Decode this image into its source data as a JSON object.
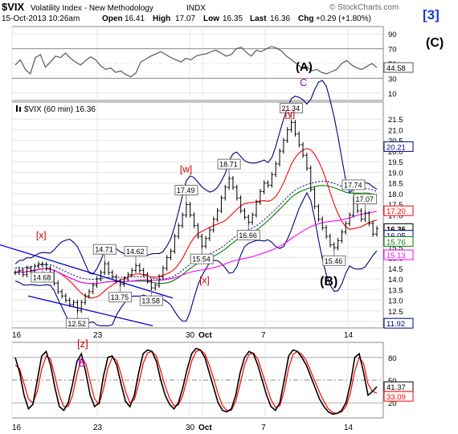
{
  "header": {
    "symbol": "$VIX",
    "name": "Volatility Index - New Methodology",
    "exchange": "INDX",
    "datetime": "15-Oct-2013 10:26am",
    "open_label": "Open",
    "open": "16.41",
    "high_label": "High",
    "high": "17.07",
    "low_label": "Low",
    "low": "16.35",
    "last_label": "Last",
    "last": "16.36",
    "chg_label": "Chg",
    "chg": "+0.29 (+1.80%)",
    "copyright": "© StockCharts.com",
    "wave_degree": "[3]",
    "wave_c": "(C)"
  },
  "colors": {
    "price_bar": "#000000",
    "sma_red": "#ff0000",
    "sma_green": "#008000",
    "sma_magenta": "#ff00ff",
    "bb_blue": "#000080",
    "trendline_blue": "#0000cc",
    "dotted": "#000066",
    "label_red": "#cc0000",
    "label_purple": "#9900cc",
    "panel_bg": "#ffffff",
    "grid": "#e6e6e6"
  },
  "chart_data": {
    "type": "line",
    "x_tick_labels": [
      "16",
      "23",
      "30",
      "Oct",
      "7",
      "14"
    ],
    "top_panel": {
      "name": "RSI",
      "ylim": [
        0,
        100
      ],
      "tick_labels": [
        "90",
        "70",
        "50",
        "30",
        "10"
      ],
      "last_value": "44.58",
      "values": [
        48,
        55,
        42,
        36,
        58,
        62,
        45,
        52,
        60,
        58,
        64,
        57,
        52,
        48,
        54,
        59,
        55,
        47,
        42,
        44,
        38,
        40,
        35,
        32,
        37,
        52,
        56,
        60,
        63,
        66,
        62,
        58,
        55,
        52,
        57,
        55,
        60,
        62,
        63,
        66,
        68,
        64,
        60,
        62,
        70,
        72,
        65,
        60,
        68,
        66,
        70,
        73,
        71,
        67,
        60,
        55,
        50,
        44,
        46,
        40,
        42,
        38,
        36,
        39,
        42,
        50,
        54,
        48,
        44,
        42,
        46,
        50,
        44.58
      ]
    },
    "main_panel": {
      "title": "$VIX (60 min) 16.36",
      "ylim": [
        11.7,
        22.3
      ],
      "tick_labels": [
        "21.5",
        "21.0",
        "20.5",
        "20.0",
        "19.5",
        "19.0",
        "18.5",
        "18.0",
        "17.5",
        "17.0",
        "16.5",
        "16.0",
        "15.5",
        "15.0",
        "14.5",
        "14.0",
        "13.5",
        "13.0",
        "12.5",
        "12.0"
      ],
      "last_values": [
        {
          "value": "20.21",
          "color": "#000080"
        },
        {
          "value": "17.20",
          "color": "#ff0000"
        },
        {
          "value": "16.36",
          "color": "#000000"
        },
        {
          "value": "16.05",
          "color": "#000080"
        },
        {
          "value": "15.76",
          "color": "#008000"
        },
        {
          "value": "15.13",
          "color": "#ff00ff"
        },
        {
          "value": "11.92",
          "color": "#000080"
        }
      ],
      "price": [
        14.3,
        14.4,
        14.2,
        14.5,
        14.4,
        14.6,
        14.7,
        14.68,
        14.5,
        14.3,
        13.8,
        13.4,
        13.2,
        13.0,
        12.8,
        12.9,
        12.52,
        12.9,
        13.2,
        13.4,
        13.7,
        14.0,
        14.3,
        14.71,
        14.3,
        14.1,
        13.9,
        13.75,
        14.0,
        14.2,
        14.4,
        14.62,
        14.4,
        14.2,
        13.9,
        13.58,
        13.7,
        14.1,
        14.5,
        15.0,
        15.3,
        16.0,
        16.5,
        17.0,
        17.49,
        17.0,
        16.5,
        16.0,
        15.54,
        15.9,
        16.3,
        16.8,
        17.2,
        17.8,
        18.3,
        18.71,
        18.3,
        17.8,
        17.2,
        16.9,
        16.66,
        17.0,
        17.6,
        18.1,
        18.5,
        18.4,
        18.9,
        19.4,
        20.0,
        20.5,
        21.0,
        21.34,
        20.8,
        20.3,
        19.8,
        19.2,
        18.2,
        17.4,
        16.8,
        16.4,
        16.0,
        15.6,
        15.46,
        15.8,
        16.2,
        16.6,
        17.0,
        17.74,
        17.2,
        16.8,
        17.07,
        16.6,
        16.1,
        16.36
      ],
      "price_labels": [
        {
          "text": "14.68",
          "i": 7
        },
        {
          "text": "12.52",
          "i": 16
        },
        {
          "text": "14.71",
          "i": 23
        },
        {
          "text": "13.75",
          "i": 27
        },
        {
          "text": "14.62",
          "i": 31
        },
        {
          "text": "13.58",
          "i": 35
        },
        {
          "text": "17.49",
          "i": 44
        },
        {
          "text": "15.54",
          "i": 48
        },
        {
          "text": "18.71",
          "i": 55
        },
        {
          "text": "16.66",
          "i": 60
        },
        {
          "text": "21.34",
          "i": 71
        },
        {
          "text": "15.46",
          "i": 82
        },
        {
          "text": "17.74",
          "i": 87
        },
        {
          "text": "17.07",
          "i": 90
        }
      ],
      "wave_labels": [
        {
          "text": "[x]",
          "color": "#cc0000",
          "i": 7,
          "y": 15.9
        },
        {
          "text": "[w]",
          "color": "#cc0000",
          "i": 44,
          "y": 19.0
        },
        {
          "text": "[x]",
          "color": "#cc0000",
          "i": 49,
          "y": 13.8
        },
        {
          "text": "[y]",
          "color": "#cc0000",
          "i": 71,
          "y": 21.6
        },
        {
          "text": "(A)",
          "color": "#000000",
          "i": 72,
          "y": 0
        },
        {
          "text": "C",
          "color": "#9900cc",
          "i": 72,
          "y": 0
        },
        {
          "text": "(B)",
          "color": "#000000",
          "i": 80,
          "y": 13.7
        }
      ]
    },
    "bottom_panel": {
      "name": "Stochastic",
      "ylim": [
        0,
        100
      ],
      "tick_labels": [
        "80",
        "50",
        "20"
      ],
      "last_value": "41.37",
      "last_value_2": "33.09",
      "wave_labels": [
        {
          "text": "[z]",
          "color": "#cc0000"
        },
        {
          "text": "B",
          "color": "#9900cc"
        }
      ],
      "fast": [
        80,
        60,
        30,
        12,
        18,
        50,
        82,
        88,
        70,
        40,
        15,
        10,
        20,
        45,
        75,
        85,
        60,
        30,
        15,
        20,
        55,
        80,
        82,
        70,
        45,
        22,
        15,
        30,
        60,
        85,
        90,
        88,
        75,
        50,
        30,
        18,
        12,
        20,
        40,
        65,
        85,
        92,
        90,
        80,
        60,
        40,
        20,
        10,
        8,
        12,
        30,
        60,
        80,
        88,
        85,
        70,
        50,
        30,
        15,
        10,
        20,
        50,
        82,
        90,
        88,
        80,
        70,
        55,
        40,
        25,
        15,
        8,
        5,
        6,
        10,
        20,
        45,
        80,
        85,
        60,
        30,
        35,
        41.37
      ],
      "slow": [
        70,
        65,
        45,
        25,
        20,
        35,
        65,
        82,
        78,
        55,
        30,
        15,
        15,
        30,
        58,
        78,
        72,
        48,
        25,
        18,
        38,
        66,
        80,
        76,
        58,
        35,
        20,
        24,
        45,
        72,
        86,
        88,
        82,
        62,
        42,
        26,
        16,
        17,
        30,
        52,
        75,
        88,
        90,
        85,
        70,
        52,
        32,
        16,
        10,
        10,
        22,
        45,
        70,
        84,
        86,
        78,
        60,
        42,
        24,
        14,
        16,
        36,
        66,
        84,
        88,
        84,
        76,
        62,
        48,
        34,
        22,
        12,
        7,
        6,
        8,
        15,
        33,
        62,
        80,
        72,
        45,
        35,
        33.09
      ]
    }
  }
}
